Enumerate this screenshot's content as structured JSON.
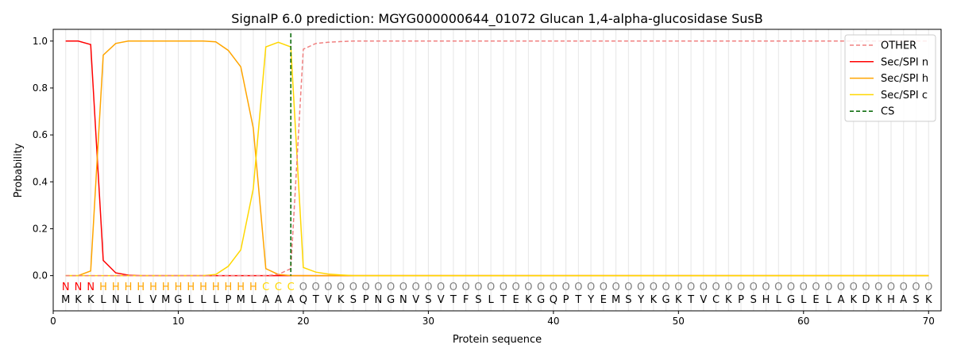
{
  "chart_data": {
    "type": "line",
    "title": "SignalP 6.0 prediction: MGYG000000644_01072 Glucan 1,4-alpha-glucosidase SusB",
    "xlabel": "Protein sequence",
    "ylabel": "Probability",
    "xlim": [
      0,
      71
    ],
    "ylim": [
      -0.15,
      1.05
    ],
    "xticks": [
      0,
      10,
      20,
      30,
      40,
      50,
      60,
      70
    ],
    "yticks": [
      0.0,
      0.2,
      0.4,
      0.6,
      0.8,
      1.0
    ],
    "grid": "vertical lines at each residue",
    "legend_placement": "top-right",
    "sequence": [
      "M",
      "K",
      "K",
      "L",
      "N",
      "L",
      "L",
      "V",
      "M",
      "G",
      "L",
      "L",
      "L",
      "P",
      "M",
      "L",
      "A",
      "A",
      "A",
      "Q",
      "T",
      "V",
      "K",
      "S",
      "P",
      "N",
      "G",
      "N",
      "V",
      "S",
      "V",
      "T",
      "F",
      "S",
      "L",
      "T",
      "E",
      "K",
      "G",
      "Q",
      "P",
      "T",
      "Y",
      "E",
      "M",
      "S",
      "Y",
      "K",
      "G",
      "K",
      "T",
      "V",
      "C",
      "K",
      "P",
      "S",
      "H",
      "L",
      "G",
      "L",
      "E",
      "L",
      "A",
      "K",
      "D",
      "K",
      "H",
      "A",
      "S",
      "K"
    ],
    "region_labels": [
      "N",
      "N",
      "N",
      "H",
      "H",
      "H",
      "H",
      "H",
      "H",
      "H",
      "H",
      "H",
      "H",
      "H",
      "H",
      "H",
      "C",
      "C",
      "C",
      "O",
      "O",
      "O",
      "O",
      "O",
      "O",
      "O",
      "O",
      "O",
      "O",
      "O",
      "O",
      "O",
      "O",
      "O",
      "O",
      "O",
      "O",
      "O",
      "O",
      "O",
      "O",
      "O",
      "O",
      "O",
      "O",
      "O",
      "O",
      "O",
      "O",
      "O",
      "O",
      "O",
      "O",
      "O",
      "O",
      "O",
      "O",
      "O",
      "O",
      "O",
      "O",
      "O",
      "O",
      "O",
      "O",
      "O",
      "O",
      "O",
      "O",
      "O"
    ],
    "region_colors": {
      "N": "#ff0000",
      "H": "#ffa500",
      "C": "#ffd700",
      "O": "#808080"
    },
    "cs_position": 19,
    "series": [
      {
        "name": "OTHER",
        "color": "#f08080",
        "dash": true,
        "points": {
          "1": 0,
          "17": 0,
          "18": 0.005,
          "19": 0.03,
          "20": 0.965,
          "21": 0.99,
          "22": 0.995,
          "23": 0.998,
          "24": 1.0,
          "70": 1.0
        }
      },
      {
        "name": "Sec/SPI n",
        "color": "#ff0000",
        "dash": false,
        "points": {
          "1": 1.0,
          "2": 1.0,
          "3": 0.985,
          "4": 0.065,
          "5": 0.012,
          "6": 0.002,
          "7": 0,
          "70": 0
        }
      },
      {
        "name": "Sec/SPI h",
        "color": "#ffa500",
        "dash": false,
        "points": {
          "1": 0,
          "2": 0,
          "3": 0.02,
          "4": 0.94,
          "5": 0.99,
          "6": 1.0,
          "12": 1.0,
          "13": 0.997,
          "14": 0.96,
          "15": 0.89,
          "16": 0.63,
          "17": 0.03,
          "18": 0.005,
          "19": 0,
          "70": 0
        }
      },
      {
        "name": "Sec/SPI c",
        "color": "#ffd700",
        "dash": false,
        "points": {
          "1": 0,
          "12": 0,
          "13": 0.005,
          "14": 0.04,
          "15": 0.11,
          "16": 0.37,
          "17": 0.975,
          "18": 0.995,
          "19": 0.975,
          "20": 0.035,
          "21": 0.015,
          "22": 0.007,
          "23": 0.003,
          "24": 0,
          "70": 0
        }
      }
    ],
    "cs_legend": {
      "name": "CS",
      "color": "#006400"
    }
  }
}
